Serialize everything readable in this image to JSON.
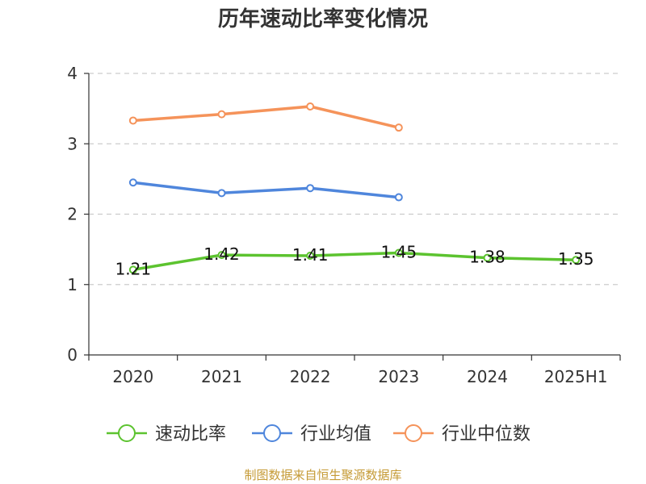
{
  "chart_data": {
    "type": "line",
    "title": "历年速动比率变化情况",
    "categories": [
      "2020",
      "2021",
      "2022",
      "2023",
      "2024",
      "2025H1"
    ],
    "ylim": [
      0,
      4
    ],
    "yticks": [
      0,
      1,
      2,
      3,
      4
    ],
    "grid": true,
    "legend_position": "bottom",
    "series": [
      {
        "name": "速动比率",
        "color": "#5cc32f",
        "values": [
          1.21,
          1.42,
          1.41,
          1.45,
          1.38,
          1.35
        ],
        "show_labels": true
      },
      {
        "name": "行业均值",
        "color": "#4f86dc",
        "values": [
          2.45,
          2.3,
          2.37,
          2.24,
          null,
          null
        ],
        "show_labels": false
      },
      {
        "name": "行业中位数",
        "color": "#f5935a",
        "values": [
          3.33,
          3.42,
          3.53,
          3.23,
          null,
          null
        ],
        "show_labels": false
      }
    ]
  },
  "source": "制图数据来自恒生聚源数据库"
}
